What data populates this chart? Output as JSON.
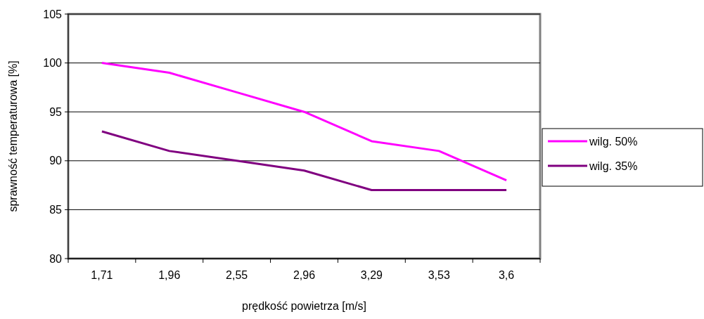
{
  "chart_data": {
    "type": "line",
    "xlabel": "prędkość powietrza [m/s]",
    "ylabel": "sprawność temperaturowa [%]",
    "categories": [
      "1,71",
      "1,96",
      "2,55",
      "2,96",
      "3,29",
      "3,53",
      "3,6"
    ],
    "series": [
      {
        "name": "wilg. 50%",
        "color": "#ff00ff",
        "values": [
          100,
          99,
          97,
          95,
          92,
          91,
          88
        ]
      },
      {
        "name": "wilg. 35%",
        "color": "#800080",
        "values": [
          93,
          91,
          90,
          89,
          87,
          87,
          87
        ]
      }
    ],
    "ylim": [
      80,
      105
    ],
    "yticks": [
      80,
      85,
      90,
      95,
      100,
      105
    ],
    "grid": "y",
    "legend": "right",
    "marker": "none",
    "line_style": "solid"
  }
}
